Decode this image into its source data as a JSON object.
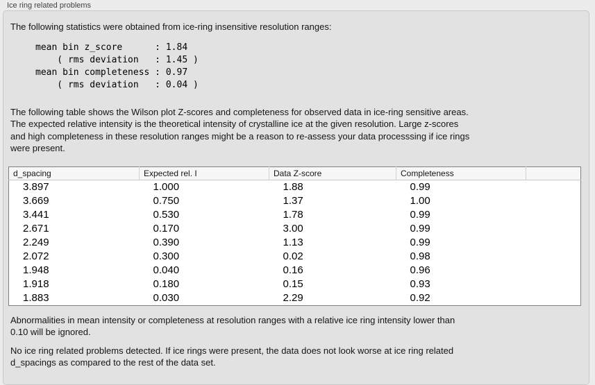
{
  "panel": {
    "title": "Ice ring related problems",
    "intro": "The following statistics were obtained from ice-ring insensitive resolution ranges:",
    "stats_block": "mean bin z_score      : 1.84\n    ( rms deviation   : 1.45 )\nmean bin completeness : 0.97\n    ( rms deviation   : 0.04 )",
    "stats": {
      "mean_bin_z_score": "1.84",
      "z_score_rms_deviation": "1.45",
      "mean_bin_completeness": "0.97",
      "completeness_rms_deviation": "0.04"
    },
    "description": "The following table shows the Wilson plot Z-scores and completeness for observed data in ice-ring sensitive areas.\nThe expected relative intensity is the theoretical intensity of crystalline ice at the given resolution. Large z-scores\nand high completeness in these resolution ranges might be a reason to re-assess your data processsing if ice rings\nwere present.",
    "note": "Abnormalities in mean intensity or completeness at resolution ranges with a relative ice ring intensity lower than\n0.10 will be ignored.",
    "conclusion": "No ice ring related problems detected. If ice rings were present, the data does not look worse at ice ring related\nd_spacings as compared to the rest of the data set."
  },
  "table": {
    "columns": [
      "d_spacing",
      "Expected rel. I",
      "Data Z-score",
      "Completeness",
      ""
    ],
    "rows": [
      [
        "3.897",
        "1.000",
        "1.88",
        "0.99",
        ""
      ],
      [
        "3.669",
        "0.750",
        "1.37",
        "1.00",
        ""
      ],
      [
        "3.441",
        "0.530",
        "1.78",
        "0.99",
        ""
      ],
      [
        "2.671",
        "0.170",
        "3.00",
        "0.99",
        ""
      ],
      [
        "2.249",
        "0.390",
        "1.13",
        "0.99",
        ""
      ],
      [
        "2.072",
        "0.300",
        "0.02",
        "0.98",
        ""
      ],
      [
        "1.948",
        "0.040",
        "0.16",
        "0.96",
        ""
      ],
      [
        "1.918",
        "0.180",
        "0.15",
        "0.93",
        ""
      ],
      [
        "1.883",
        "0.030",
        "2.29",
        "0.92",
        ""
      ]
    ]
  },
  "chart_data": {
    "type": "table",
    "title": "Ice ring related problems",
    "columns": [
      "d_spacing",
      "Expected rel. I",
      "Data Z-score",
      "Completeness"
    ],
    "d_spacing": [
      3.897,
      3.669,
      3.441,
      2.671,
      2.249,
      2.072,
      1.948,
      1.918,
      1.883
    ],
    "expected_rel_I": [
      1.0,
      0.75,
      0.53,
      0.17,
      0.39,
      0.3,
      0.04,
      0.18,
      0.03
    ],
    "data_z_score": [
      1.88,
      1.37,
      1.78,
      3.0,
      1.13,
      0.02,
      0.16,
      0.15,
      2.29
    ],
    "completeness": [
      0.99,
      1.0,
      0.99,
      0.99,
      0.99,
      0.98,
      0.96,
      0.93,
      0.92
    ]
  },
  "colors": {
    "outer_background": "#ececec",
    "groupbox_background": "#e2e2e2",
    "groupbox_border": "#c8c8c8",
    "table_background": "#ffffff",
    "table_border": "#7f7f7f",
    "table_header_background": "#f7f7f7",
    "text": "#141414"
  }
}
